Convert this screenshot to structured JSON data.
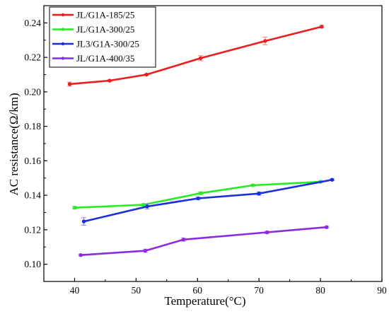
{
  "chart_data": {
    "type": "line",
    "title": "",
    "xlabel": "Temperature(°C)",
    "ylabel": "AC resistance(Ω/km)",
    "xlim": [
      35,
      90
    ],
    "ylim": [
      0.09,
      0.25
    ],
    "xticks": [
      40,
      50,
      60,
      70,
      80,
      90
    ],
    "yticks": [
      0.1,
      0.12,
      0.14,
      0.16,
      0.18,
      0.2,
      0.22,
      0.24
    ],
    "grid": false,
    "legend_position": "top-left",
    "series": [
      {
        "name": "JL/G1A-185/25",
        "color": "#ee1c1c",
        "errorbar_color": "#f08080",
        "x": [
          39.2,
          45.7,
          51.7,
          60.5,
          71.0,
          80.2
        ],
        "y": [
          0.2045,
          0.2065,
          0.21,
          0.2195,
          0.2295,
          0.2378
        ],
        "err": [
          0.0012,
          0.0005,
          0.0005,
          0.0015,
          0.0022,
          0.0008
        ]
      },
      {
        "name": "JL/G1A-300/25",
        "color": "#22ee22",
        "errorbar_color": "#80e080",
        "x": [
          40.0,
          51.2,
          60.5,
          69.0,
          80.0
        ],
        "y": [
          0.1328,
          0.1345,
          0.1412,
          0.1458,
          0.1478
        ],
        "err": [
          0.0008,
          0.0005,
          0.0008,
          0.0005,
          0.0006
        ]
      },
      {
        "name": "JL3/G1A-300/25",
        "color": "#1a2ee0",
        "errorbar_color": "#8080f0",
        "x": [
          41.5,
          51.8,
          60.1,
          70.0,
          81.9
        ],
        "y": [
          0.1248,
          0.1335,
          0.1382,
          0.141,
          0.149
        ],
        "err": [
          0.0022,
          0.0015,
          0.0007,
          0.001,
          0.0005
        ]
      },
      {
        "name": "JL/G1A-400/35",
        "color": "#8a2be2",
        "errorbar_color": "#c090f0",
        "x": [
          41.0,
          51.5,
          57.7,
          71.3,
          81.0
        ],
        "y": [
          0.1053,
          0.1078,
          0.1143,
          0.1185,
          0.1215
        ],
        "err": [
          0.0005,
          0.001,
          0.001,
          0.0007,
          0.0005
        ]
      }
    ]
  }
}
